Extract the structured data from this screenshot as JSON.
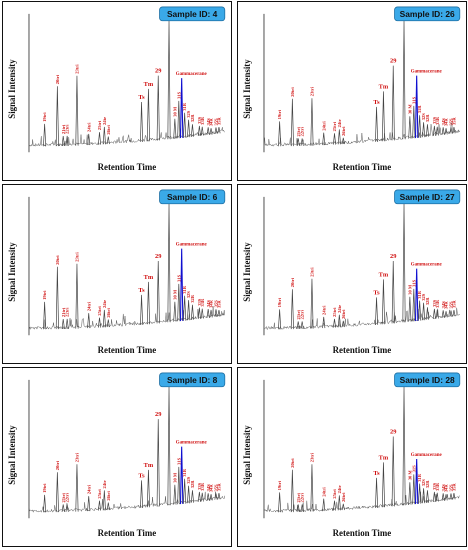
{
  "chart_data": [
    {
      "type": "line",
      "badge": "Sample ID: 4",
      "xlabel": "Retention Time",
      "ylabel": "Signal Intensity",
      "peaks": [
        {
          "label": "19tri",
          "x": 0.08,
          "y": 0.18,
          "color": "red"
        },
        {
          "label": "20tri",
          "x": 0.145,
          "y": 0.48,
          "color": "red"
        },
        {
          "label": "21tri",
          "x": 0.175,
          "y": 0.08,
          "color": "red"
        },
        {
          "label": "22tri",
          "x": 0.195,
          "y": 0.08,
          "color": "red"
        },
        {
          "label": "23tri",
          "x": 0.245,
          "y": 0.56,
          "color": "red"
        },
        {
          "label": "24tri",
          "x": 0.305,
          "y": 0.09,
          "color": "red"
        },
        {
          "label": "25tri",
          "x": 0.36,
          "y": 0.1,
          "color": "red"
        },
        {
          "label": "24te",
          "x": 0.385,
          "y": 0.14,
          "color": "red"
        },
        {
          "label": "26tri",
          "x": 0.405,
          "y": 0.06,
          "color": "red"
        },
        {
          "label": "Ts",
          "x": 0.575,
          "y": 0.32,
          "color": "red"
        },
        {
          "label": "Tm",
          "x": 0.61,
          "y": 0.42,
          "color": "red"
        },
        {
          "label": "29",
          "x": 0.66,
          "y": 0.52,
          "color": "red"
        },
        {
          "label": "30",
          "x": 0.715,
          "y": 0.95,
          "color": "red"
        },
        {
          "label": "30 M",
          "x": 0.745,
          "y": 0.16,
          "color": "red"
        },
        {
          "label": "31S",
          "x": 0.765,
          "y": 0.3,
          "color": "red"
        },
        {
          "label": "Gammacerane",
          "x": 0.78,
          "y": 0.48,
          "color": "blue"
        },
        {
          "label": "31R",
          "x": 0.795,
          "y": 0.2,
          "color": "red"
        },
        {
          "label": "32S",
          "x": 0.815,
          "y": 0.14,
          "color": "red"
        },
        {
          "label": "32R",
          "x": 0.835,
          "y": 0.1,
          "color": "red"
        },
        {
          "label": "33S",
          "x": 0.87,
          "y": 0.08,
          "color": "red"
        },
        {
          "label": "33R",
          "x": 0.885,
          "y": 0.07,
          "color": "red"
        },
        {
          "label": "34S",
          "x": 0.915,
          "y": 0.06,
          "color": "red"
        },
        {
          "label": "34R",
          "x": 0.93,
          "y": 0.05,
          "color": "red"
        },
        {
          "label": "35S",
          "x": 0.955,
          "y": 0.05,
          "color": "red"
        },
        {
          "label": "35R",
          "x": 0.97,
          "y": 0.05,
          "color": "red"
        }
      ]
    },
    {
      "type": "line",
      "badge": "Sample ID: 26",
      "xlabel": "Retention Time",
      "ylabel": "Signal Intensity",
      "peaks": [
        {
          "label": "19tri",
          "x": 0.08,
          "y": 0.2,
          "color": "red"
        },
        {
          "label": "20tri",
          "x": 0.145,
          "y": 0.38,
          "color": "red"
        },
        {
          "label": "21tri",
          "x": 0.175,
          "y": 0.06,
          "color": "red"
        },
        {
          "label": "22tri",
          "x": 0.195,
          "y": 0.06,
          "color": "red"
        },
        {
          "label": "23tri",
          "x": 0.245,
          "y": 0.38,
          "color": "red"
        },
        {
          "label": "24tri",
          "x": 0.305,
          "y": 0.1,
          "color": "red"
        },
        {
          "label": "25tri",
          "x": 0.36,
          "y": 0.09,
          "color": "red"
        },
        {
          "label": "24te",
          "x": 0.385,
          "y": 0.12,
          "color": "red"
        },
        {
          "label": "26tri",
          "x": 0.405,
          "y": 0.05,
          "color": "red"
        },
        {
          "label": "Ts",
          "x": 0.575,
          "y": 0.28,
          "color": "red"
        },
        {
          "label": "Tm",
          "x": 0.61,
          "y": 0.4,
          "color": "red"
        },
        {
          "label": "29",
          "x": 0.66,
          "y": 0.6,
          "color": "red"
        },
        {
          "label": "30",
          "x": 0.715,
          "y": 0.95,
          "color": "red"
        },
        {
          "label": "30 M",
          "x": 0.745,
          "y": 0.18,
          "color": "red"
        },
        {
          "label": "31S",
          "x": 0.765,
          "y": 0.26,
          "color": "red"
        },
        {
          "label": "Gammacerane",
          "x": 0.78,
          "y": 0.5,
          "color": "blue"
        },
        {
          "label": "31R",
          "x": 0.795,
          "y": 0.18,
          "color": "red"
        },
        {
          "label": "32S",
          "x": 0.815,
          "y": 0.12,
          "color": "red"
        },
        {
          "label": "32R",
          "x": 0.835,
          "y": 0.1,
          "color": "red"
        },
        {
          "label": "33S",
          "x": 0.87,
          "y": 0.08,
          "color": "red"
        },
        {
          "label": "33R",
          "x": 0.885,
          "y": 0.07,
          "color": "red"
        },
        {
          "label": "34S",
          "x": 0.915,
          "y": 0.06,
          "color": "red"
        },
        {
          "label": "34R",
          "x": 0.93,
          "y": 0.05,
          "color": "red"
        },
        {
          "label": "35S",
          "x": 0.955,
          "y": 0.05,
          "color": "red"
        },
        {
          "label": "35R",
          "x": 0.97,
          "y": 0.05,
          "color": "red"
        }
      ]
    },
    {
      "type": "line",
      "badge": "Sample ID: 6",
      "xlabel": "Retention Time",
      "ylabel": "Signal Intensity",
      "peaks": [
        {
          "label": "19tri",
          "x": 0.08,
          "y": 0.22,
          "color": "red"
        },
        {
          "label": "20tri",
          "x": 0.145,
          "y": 0.5,
          "color": "red"
        },
        {
          "label": "21tri",
          "x": 0.175,
          "y": 0.08,
          "color": "red"
        },
        {
          "label": "22tri",
          "x": 0.195,
          "y": 0.08,
          "color": "red"
        },
        {
          "label": "23tri",
          "x": 0.245,
          "y": 0.52,
          "color": "red"
        },
        {
          "label": "24tri",
          "x": 0.305,
          "y": 0.12,
          "color": "red"
        },
        {
          "label": "25tri",
          "x": 0.36,
          "y": 0.08,
          "color": "red"
        },
        {
          "label": "24te",
          "x": 0.385,
          "y": 0.14,
          "color": "red"
        },
        {
          "label": "26tri",
          "x": 0.405,
          "y": 0.06,
          "color": "red"
        },
        {
          "label": "Ts",
          "x": 0.575,
          "y": 0.24,
          "color": "red"
        },
        {
          "label": "Tm",
          "x": 0.61,
          "y": 0.34,
          "color": "red"
        },
        {
          "label": "29",
          "x": 0.66,
          "y": 0.5,
          "color": "red"
        },
        {
          "label": "30",
          "x": 0.715,
          "y": 0.95,
          "color": "red"
        },
        {
          "label": "30 M",
          "x": 0.745,
          "y": 0.16,
          "color": "red"
        },
        {
          "label": "31S",
          "x": 0.765,
          "y": 0.3,
          "color": "red"
        },
        {
          "label": "Gammacerane",
          "x": 0.78,
          "y": 0.58,
          "color": "blue"
        },
        {
          "label": "31R",
          "x": 0.795,
          "y": 0.2,
          "color": "red"
        },
        {
          "label": "32S",
          "x": 0.815,
          "y": 0.16,
          "color": "red"
        },
        {
          "label": "32R",
          "x": 0.835,
          "y": 0.12,
          "color": "red"
        },
        {
          "label": "33S",
          "x": 0.87,
          "y": 0.09,
          "color": "red"
        },
        {
          "label": "33R",
          "x": 0.885,
          "y": 0.08,
          "color": "red"
        },
        {
          "label": "34S",
          "x": 0.915,
          "y": 0.07,
          "color": "red"
        },
        {
          "label": "34R",
          "x": 0.93,
          "y": 0.06,
          "color": "red"
        },
        {
          "label": "35S",
          "x": 0.955,
          "y": 0.06,
          "color": "red"
        },
        {
          "label": "35R",
          "x": 0.97,
          "y": 0.05,
          "color": "red"
        }
      ]
    },
    {
      "type": "line",
      "badge": "Sample ID: 27",
      "xlabel": "Retention Time",
      "ylabel": "Signal Intensity",
      "peaks": [
        {
          "label": "19tri",
          "x": 0.08,
          "y": 0.16,
          "color": "red"
        },
        {
          "label": "20tri",
          "x": 0.145,
          "y": 0.32,
          "color": "red"
        },
        {
          "label": "21tri",
          "x": 0.175,
          "y": 0.06,
          "color": "red"
        },
        {
          "label": "22tri",
          "x": 0.195,
          "y": 0.06,
          "color": "red"
        },
        {
          "label": "23tri",
          "x": 0.245,
          "y": 0.4,
          "color": "red"
        },
        {
          "label": "24tri",
          "x": 0.305,
          "y": 0.09,
          "color": "red"
        },
        {
          "label": "25tri",
          "x": 0.36,
          "y": 0.07,
          "color": "red"
        },
        {
          "label": "24te",
          "x": 0.385,
          "y": 0.1,
          "color": "red"
        },
        {
          "label": "26tri",
          "x": 0.405,
          "y": 0.05,
          "color": "red"
        },
        {
          "label": "Ts",
          "x": 0.575,
          "y": 0.22,
          "color": "red"
        },
        {
          "label": "Tm",
          "x": 0.61,
          "y": 0.36,
          "color": "red"
        },
        {
          "label": "29",
          "x": 0.66,
          "y": 0.5,
          "color": "red"
        },
        {
          "label": "30",
          "x": 0.715,
          "y": 0.95,
          "color": "red"
        },
        {
          "label": "30 M",
          "x": 0.745,
          "y": 0.2,
          "color": "red"
        },
        {
          "label": "31S",
          "x": 0.765,
          "y": 0.26,
          "color": "red"
        },
        {
          "label": "Gammacerane",
          "x": 0.78,
          "y": 0.42,
          "color": "blue"
        },
        {
          "label": "31R",
          "x": 0.795,
          "y": 0.16,
          "color": "red"
        },
        {
          "label": "32S",
          "x": 0.815,
          "y": 0.14,
          "color": "red"
        },
        {
          "label": "32R",
          "x": 0.835,
          "y": 0.1,
          "color": "red"
        },
        {
          "label": "33S",
          "x": 0.87,
          "y": 0.08,
          "color": "red"
        },
        {
          "label": "33R",
          "x": 0.885,
          "y": 0.07,
          "color": "red"
        },
        {
          "label": "34S",
          "x": 0.915,
          "y": 0.06,
          "color": "red"
        },
        {
          "label": "34R",
          "x": 0.93,
          "y": 0.05,
          "color": "red"
        },
        {
          "label": "35S",
          "x": 0.955,
          "y": 0.05,
          "color": "red"
        },
        {
          "label": "35R",
          "x": 0.97,
          "y": 0.05,
          "color": "red"
        }
      ]
    },
    {
      "type": "line",
      "badge": "Sample ID: 8",
      "xlabel": "Retention Time",
      "ylabel": "Signal Intensity",
      "peaks": [
        {
          "label": "19tri",
          "x": 0.08,
          "y": 0.14,
          "color": "red"
        },
        {
          "label": "20tri",
          "x": 0.145,
          "y": 0.32,
          "color": "red"
        },
        {
          "label": "21tri",
          "x": 0.175,
          "y": 0.06,
          "color": "red"
        },
        {
          "label": "22tri",
          "x": 0.195,
          "y": 0.06,
          "color": "red"
        },
        {
          "label": "23tri",
          "x": 0.245,
          "y": 0.38,
          "color": "red"
        },
        {
          "label": "24tri",
          "x": 0.305,
          "y": 0.12,
          "color": "red"
        },
        {
          "label": "25tri",
          "x": 0.36,
          "y": 0.08,
          "color": "red"
        },
        {
          "label": "24te",
          "x": 0.385,
          "y": 0.16,
          "color": "red"
        },
        {
          "label": "26tri",
          "x": 0.405,
          "y": 0.06,
          "color": "red"
        },
        {
          "label": "Ts",
          "x": 0.575,
          "y": 0.22,
          "color": "red"
        },
        {
          "label": "Tm",
          "x": 0.61,
          "y": 0.3,
          "color": "red"
        },
        {
          "label": "29",
          "x": 0.66,
          "y": 0.7,
          "color": "red"
        },
        {
          "label": "30",
          "x": 0.715,
          "y": 0.95,
          "color": "red"
        },
        {
          "label": "30 M",
          "x": 0.745,
          "y": 0.16,
          "color": "red"
        },
        {
          "label": "31S",
          "x": 0.765,
          "y": 0.3,
          "color": "red"
        },
        {
          "label": "Gammacerane",
          "x": 0.78,
          "y": 0.46,
          "color": "blue"
        },
        {
          "label": "31R",
          "x": 0.795,
          "y": 0.2,
          "color": "red"
        },
        {
          "label": "32S",
          "x": 0.815,
          "y": 0.14,
          "color": "red"
        },
        {
          "label": "32R",
          "x": 0.835,
          "y": 0.1,
          "color": "red"
        },
        {
          "label": "33S",
          "x": 0.87,
          "y": 0.08,
          "color": "red"
        },
        {
          "label": "33R",
          "x": 0.885,
          "y": 0.07,
          "color": "red"
        },
        {
          "label": "34S",
          "x": 0.915,
          "y": 0.06,
          "color": "red"
        },
        {
          "label": "34R",
          "x": 0.93,
          "y": 0.05,
          "color": "red"
        },
        {
          "label": "35S",
          "x": 0.955,
          "y": 0.05,
          "color": "red"
        },
        {
          "label": "35R",
          "x": 0.97,
          "y": 0.05,
          "color": "red"
        }
      ]
    },
    {
      "type": "line",
      "badge": "Sample ID: 28",
      "xlabel": "Retention Time",
      "ylabel": "Signal Intensity",
      "peaks": [
        {
          "label": "19tri",
          "x": 0.08,
          "y": 0.16,
          "color": "red"
        },
        {
          "label": "20tri",
          "x": 0.145,
          "y": 0.34,
          "color": "red"
        },
        {
          "label": "21tri",
          "x": 0.175,
          "y": 0.06,
          "color": "red"
        },
        {
          "label": "22tri",
          "x": 0.195,
          "y": 0.06,
          "color": "red"
        },
        {
          "label": "23tri",
          "x": 0.245,
          "y": 0.38,
          "color": "red"
        },
        {
          "label": "24tri",
          "x": 0.305,
          "y": 0.1,
          "color": "red"
        },
        {
          "label": "25tri",
          "x": 0.36,
          "y": 0.08,
          "color": "red"
        },
        {
          "label": "24te",
          "x": 0.385,
          "y": 0.12,
          "color": "red"
        },
        {
          "label": "26tri",
          "x": 0.405,
          "y": 0.05,
          "color": "red"
        },
        {
          "label": "Ts",
          "x": 0.575,
          "y": 0.24,
          "color": "red"
        },
        {
          "label": "Tm",
          "x": 0.61,
          "y": 0.36,
          "color": "red"
        },
        {
          "label": "29",
          "x": 0.66,
          "y": 0.56,
          "color": "red"
        },
        {
          "label": "30",
          "x": 0.715,
          "y": 0.95,
          "color": "red"
        },
        {
          "label": "30 M",
          "x": 0.745,
          "y": 0.18,
          "color": "red"
        },
        {
          "label": "31S",
          "x": 0.765,
          "y": 0.24,
          "color": "red"
        },
        {
          "label": "Gammacerane",
          "x": 0.78,
          "y": 0.36,
          "color": "blue"
        },
        {
          "label": "31R",
          "x": 0.795,
          "y": 0.16,
          "color": "red"
        },
        {
          "label": "32S",
          "x": 0.815,
          "y": 0.12,
          "color": "red"
        },
        {
          "label": "32R",
          "x": 0.835,
          "y": 0.1,
          "color": "red"
        },
        {
          "label": "33S",
          "x": 0.87,
          "y": 0.08,
          "color": "red"
        },
        {
          "label": "33R",
          "x": 0.885,
          "y": 0.07,
          "color": "red"
        },
        {
          "label": "34S",
          "x": 0.915,
          "y": 0.06,
          "color": "red"
        },
        {
          "label": "34R",
          "x": 0.93,
          "y": 0.05,
          "color": "red"
        },
        {
          "label": "35S",
          "x": 0.955,
          "y": 0.05,
          "color": "red"
        },
        {
          "label": "35R",
          "x": 0.97,
          "y": 0.05,
          "color": "red"
        }
      ]
    }
  ],
  "colors": {
    "badge_fill": "#3aa9e8",
    "peak_label": "#d01010",
    "gammacerane": "#1010d0",
    "trace": "#555555"
  }
}
